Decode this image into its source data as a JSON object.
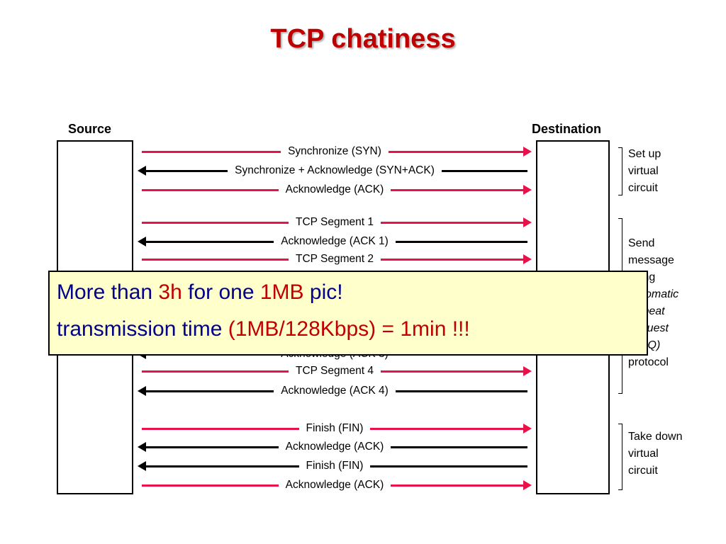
{
  "slide": {
    "title": "TCP chatiness"
  },
  "diagram": {
    "source_label": "Source",
    "destination_label": "Destination",
    "messages": [
      {
        "label": "Synchronize (SYN)",
        "direction": "forward"
      },
      {
        "label": "Synchronize + Acknowledge (SYN+ACK)",
        "direction": "back"
      },
      {
        "label": "Acknowledge (ACK)",
        "direction": "forward"
      },
      {
        "label": "TCP Segment 1",
        "direction": "forward"
      },
      {
        "label": "Acknowledge (ACK 1)",
        "direction": "back"
      },
      {
        "label": "TCP Segment 2",
        "direction": "forward"
      },
      {
        "label": "Acknowledge (ACK 3)",
        "direction": "back"
      },
      {
        "label": "TCP Segment 4",
        "direction": "forward"
      },
      {
        "label": "Acknowledge (ACK 4)",
        "direction": "back"
      },
      {
        "label": "Finish (FIN)",
        "direction": "forward"
      },
      {
        "label": "Acknowledge (ACK)",
        "direction": "back"
      },
      {
        "label": "Finish (FIN)",
        "direction": "back"
      },
      {
        "label": "Acknowledge (ACK)",
        "direction": "forward"
      }
    ],
    "phases": {
      "setup": [
        "Set up",
        "virtual",
        "circuit"
      ],
      "send": [
        "Send",
        "message",
        "using",
        "Automatic",
        "Repeat",
        "reQuest",
        "(ARQ)",
        "protocol"
      ],
      "teardown": [
        "Take down",
        "virtual",
        "circuit"
      ]
    },
    "colors": {
      "forward_arrow": "#e8124a",
      "back_arrow": "#000000"
    }
  },
  "callout": {
    "line1": {
      "a": "More than ",
      "b": "3h",
      "c": " for one ",
      "d": "1MB",
      "e": " pic!"
    },
    "line2": {
      "a": "transmission time ",
      "b": "(1MB/128Kbps) = 1min !!!"
    },
    "colors": {
      "text": "#00008b",
      "highlight": "#c00000",
      "background": "#ffffcc"
    }
  }
}
